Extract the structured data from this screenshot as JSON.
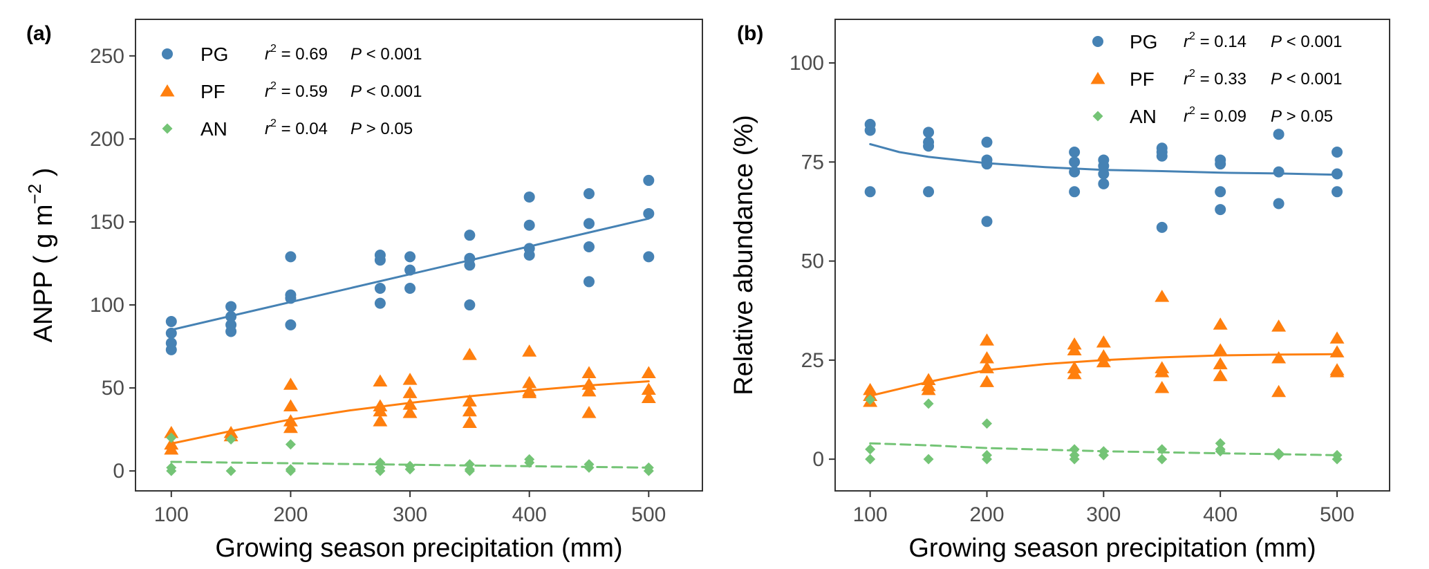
{
  "chart_data": [
    {
      "type": "scatter",
      "panel_label": "(a)",
      "xlabel": "Growing season precipitation (mm)",
      "ylabel": "ANPP ( g m",
      "ylabel_exponent": "−2",
      "ylabel_close": " )",
      "xlim": [
        70,
        545
      ],
      "ylim": [
        -12,
        272
      ],
      "xticks": [
        100,
        200,
        300,
        400,
        500
      ],
      "yticks": [
        0,
        50,
        100,
        150,
        200,
        250
      ],
      "legend_position": "top-left",
      "series": [
        {
          "name": "PG",
          "color": "#4682b4",
          "marker": "circle",
          "stat_r2": "0.69",
          "stat_op": "<",
          "stat_p": "0.001",
          "fit_style": "solid",
          "points": [
            [
              100,
              90
            ],
            [
              100,
              83
            ],
            [
              100,
              77
            ],
            [
              100,
              73
            ],
            [
              150,
              99
            ],
            [
              150,
              93
            ],
            [
              150,
              88
            ],
            [
              150,
              84
            ],
            [
              200,
              129
            ],
            [
              200,
              106
            ],
            [
              200,
              104
            ],
            [
              200,
              88
            ],
            [
              275,
              130
            ],
            [
              275,
              127
            ],
            [
              275,
              110
            ],
            [
              275,
              101
            ],
            [
              300,
              129
            ],
            [
              300,
              121
            ],
            [
              300,
              110
            ],
            [
              350,
              142
            ],
            [
              350,
              128
            ],
            [
              350,
              124
            ],
            [
              350,
              100
            ],
            [
              400,
              165
            ],
            [
              400,
              148
            ],
            [
              400,
              134
            ],
            [
              400,
              130
            ],
            [
              450,
              167
            ],
            [
              450,
              149
            ],
            [
              450,
              135
            ],
            [
              450,
              114
            ],
            [
              500,
              175
            ],
            [
              500,
              155
            ],
            [
              500,
              129
            ]
          ],
          "fit": [
            [
              100,
              85
            ],
            [
              500,
              152
            ]
          ]
        },
        {
          "name": "PF",
          "color": "#ff7f0e",
          "marker": "triangle",
          "stat_r2": "0.59",
          "stat_op": "<",
          "stat_p": "0.001",
          "fit_style": "solid",
          "points": [
            [
              100,
              23
            ],
            [
              100,
              16
            ],
            [
              100,
              13
            ],
            [
              150,
              23
            ],
            [
              150,
              21
            ],
            [
              200,
              52
            ],
            [
              200,
              39
            ],
            [
              200,
              30
            ],
            [
              200,
              26
            ],
            [
              275,
              54
            ],
            [
              275,
              39
            ],
            [
              275,
              36
            ],
            [
              275,
              30
            ],
            [
              300,
              55
            ],
            [
              300,
              47
            ],
            [
              300,
              40
            ],
            [
              300,
              35
            ],
            [
              350,
              70
            ],
            [
              350,
              42
            ],
            [
              350,
              36
            ],
            [
              350,
              29
            ],
            [
              400,
              72
            ],
            [
              400,
              53
            ],
            [
              400,
              48
            ],
            [
              400,
              47
            ],
            [
              450,
              59
            ],
            [
              450,
              52
            ],
            [
              450,
              48
            ],
            [
              450,
              35
            ],
            [
              500,
              59
            ],
            [
              500,
              49
            ],
            [
              500,
              44
            ]
          ],
          "fit": [
            [
              100,
              16.5
            ],
            [
              150,
              24
            ],
            [
              200,
              31
            ],
            [
              250,
              36.5
            ],
            [
              300,
              41
            ],
            [
              350,
              45
            ],
            [
              400,
              48.5
            ],
            [
              450,
              51.5
            ],
            [
              500,
              54
            ]
          ]
        },
        {
          "name": "AN",
          "color": "#74c476",
          "marker": "diamond",
          "stat_r2": "0.04",
          "stat_op": ">",
          "stat_p": "0.05",
          "fit_style": "dashed",
          "points": [
            [
              100,
              20
            ],
            [
              100,
              2
            ],
            [
              100,
              0
            ],
            [
              150,
              19
            ],
            [
              150,
              0
            ],
            [
              200,
              16
            ],
            [
              200,
              1
            ],
            [
              200,
              0
            ],
            [
              275,
              5
            ],
            [
              275,
              2
            ],
            [
              275,
              0
            ],
            [
              300,
              3
            ],
            [
              300,
              1
            ],
            [
              350,
              4
            ],
            [
              350,
              1
            ],
            [
              350,
              0
            ],
            [
              400,
              7
            ],
            [
              400,
              5
            ],
            [
              450,
              4
            ],
            [
              450,
              2
            ],
            [
              500,
              2
            ],
            [
              500,
              0
            ]
          ],
          "fit": [
            [
              100,
              5.5
            ],
            [
              500,
              2
            ]
          ]
        }
      ]
    },
    {
      "type": "scatter",
      "panel_label": "(b)",
      "xlabel": "Growing season precipitation (mm)",
      "ylabel": "Relative abundance (%)",
      "xlim": [
        70,
        545
      ],
      "ylim": [
        -8,
        111
      ],
      "xticks": [
        100,
        200,
        300,
        400,
        500
      ],
      "yticks": [
        0,
        25,
        50,
        75,
        100
      ],
      "legend_position": "top-right",
      "series": [
        {
          "name": "PG",
          "color": "#4682b4",
          "marker": "circle",
          "stat_r2": "0.14",
          "stat_op": "<",
          "stat_p": "0.001",
          "fit_style": "solid",
          "points": [
            [
              100,
              84.5
            ],
            [
              100,
              83
            ],
            [
              100,
              67.5
            ],
            [
              150,
              82.5
            ],
            [
              150,
              80
            ],
            [
              150,
              79
            ],
            [
              150,
              67.5
            ],
            [
              200,
              80
            ],
            [
              200,
              75.5
            ],
            [
              200,
              74.5
            ],
            [
              200,
              60
            ],
            [
              275,
              77.5
            ],
            [
              275,
              75
            ],
            [
              275,
              72.5
            ],
            [
              275,
              67.5
            ],
            [
              300,
              75.5
            ],
            [
              300,
              74
            ],
            [
              300,
              72
            ],
            [
              300,
              69.5
            ],
            [
              350,
              78.5
            ],
            [
              350,
              77.5
            ],
            [
              350,
              76.5
            ],
            [
              350,
              58.5
            ],
            [
              400,
              75.5
            ],
            [
              400,
              74.5
            ],
            [
              400,
              67.5
            ],
            [
              400,
              63
            ],
            [
              450,
              82
            ],
            [
              450,
              72.5
            ],
            [
              450,
              64.5
            ],
            [
              500,
              77.5
            ],
            [
              500,
              72
            ],
            [
              500,
              67.5
            ]
          ],
          "fit": [
            [
              100,
              79.5
            ],
            [
              125,
              77.5
            ],
            [
              150,
              76.3
            ],
            [
              200,
              74.7
            ],
            [
              250,
              73.7
            ],
            [
              300,
              73
            ],
            [
              350,
              72.7
            ],
            [
              400,
              72.3
            ],
            [
              450,
              72.1
            ],
            [
              500,
              71.8
            ]
          ]
        },
        {
          "name": "PF",
          "color": "#ff7f0e",
          "marker": "triangle",
          "stat_r2": "0.33",
          "stat_op": "<",
          "stat_p": "0.001",
          "fit_style": "solid",
          "points": [
            [
              100,
              17.5
            ],
            [
              100,
              16
            ],
            [
              100,
              14.5
            ],
            [
              150,
              20
            ],
            [
              150,
              18.5
            ],
            [
              150,
              17.5
            ],
            [
              200,
              30
            ],
            [
              200,
              25.5
            ],
            [
              200,
              23
            ],
            [
              200,
              19.5
            ],
            [
              275,
              29
            ],
            [
              275,
              27.5
            ],
            [
              275,
              23
            ],
            [
              275,
              21.5
            ],
            [
              300,
              29.5
            ],
            [
              300,
              26
            ],
            [
              300,
              24.5
            ],
            [
              350,
              41
            ],
            [
              350,
              23
            ],
            [
              350,
              22
            ],
            [
              350,
              18
            ],
            [
              400,
              34
            ],
            [
              400,
              27.5
            ],
            [
              400,
              24
            ],
            [
              400,
              21
            ],
            [
              450,
              33.5
            ],
            [
              450,
              25.5
            ],
            [
              450,
              17
            ],
            [
              500,
              30.5
            ],
            [
              500,
              27
            ],
            [
              500,
              22.5
            ],
            [
              500,
              22
            ]
          ],
          "fit": [
            [
              100,
              16
            ],
            [
              150,
              19.5
            ],
            [
              200,
              22.5
            ],
            [
              250,
              24
            ],
            [
              300,
              25
            ],
            [
              350,
              25.7
            ],
            [
              400,
              26.2
            ],
            [
              450,
              26.4
            ],
            [
              500,
              26.5
            ]
          ]
        },
        {
          "name": "AN",
          "color": "#74c476",
          "marker": "diamond",
          "stat_r2": "0.09",
          "stat_op": ">",
          "stat_p": "0.05",
          "fit_style": "dashed",
          "points": [
            [
              100,
              15
            ],
            [
              100,
              2.5
            ],
            [
              100,
              0
            ],
            [
              150,
              14
            ],
            [
              150,
              0
            ],
            [
              200,
              9
            ],
            [
              200,
              1
            ],
            [
              200,
              0
            ],
            [
              275,
              2.5
            ],
            [
              275,
              1
            ],
            [
              275,
              0
            ],
            [
              300,
              2
            ],
            [
              300,
              1
            ],
            [
              350,
              2.5
            ],
            [
              350,
              0
            ],
            [
              400,
              4
            ],
            [
              400,
              2.5
            ],
            [
              400,
              2
            ],
            [
              450,
              1.5
            ],
            [
              450,
              1
            ],
            [
              500,
              1
            ],
            [
              500,
              0
            ]
          ],
          "fit": [
            [
              100,
              4
            ],
            [
              150,
              3.5
            ],
            [
              200,
              2.8
            ],
            [
              300,
              2
            ],
            [
              400,
              1.5
            ],
            [
              500,
              1
            ]
          ]
        }
      ]
    }
  ]
}
